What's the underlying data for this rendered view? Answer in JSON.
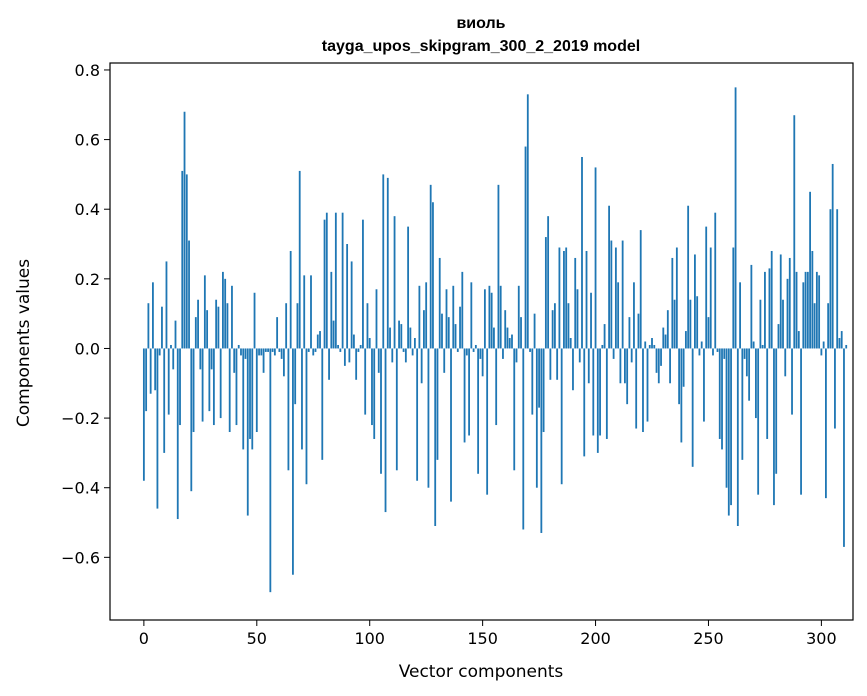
{
  "chart_data": {
    "type": "bar",
    "title": "виоль",
    "subtitle": "tayga_upos_skipgram_300_2_2019 model",
    "xlabel": "Vector components",
    "ylabel": "Components values",
    "xlim": [
      -15,
      314
    ],
    "ylim": [
      -0.78,
      0.82
    ],
    "xticks": [
      0,
      50,
      100,
      150,
      200,
      250,
      300
    ],
    "yticks": [
      -0.6,
      -0.4,
      -0.2,
      0.0,
      0.2,
      0.4,
      0.6,
      0.8
    ],
    "xtick_labels": [
      "0",
      "50",
      "100",
      "150",
      "200",
      "250",
      "300"
    ],
    "ytick_labels": [
      "−0.6",
      "−0.4",
      "−0.2",
      "0.0",
      "0.2",
      "0.4",
      "0.6",
      "0.8"
    ],
    "grid": false,
    "bar_color": "#1f77b4",
    "x_start": 0,
    "values": [
      -0.38,
      -0.18,
      0.13,
      -0.13,
      0.19,
      -0.12,
      -0.46,
      -0.02,
      0.12,
      -0.3,
      0.25,
      -0.19,
      0.01,
      -0.06,
      0.08,
      -0.49,
      -0.22,
      0.51,
      0.68,
      0.5,
      0.31,
      -0.41,
      -0.24,
      0.09,
      0.14,
      -0.06,
      -0.21,
      0.21,
      0.11,
      -0.18,
      -0.06,
      -0.22,
      0.14,
      0.12,
      -0.2,
      0.22,
      0.2,
      0.13,
      -0.24,
      0.18,
      -0.07,
      -0.22,
      0.01,
      -0.02,
      -0.29,
      -0.03,
      -0.48,
      -0.26,
      -0.29,
      0.16,
      -0.24,
      -0.02,
      -0.02,
      -0.07,
      -0.01,
      -0.01,
      -0.7,
      -0.01,
      -0.02,
      0.09,
      -0.01,
      -0.03,
      -0.08,
      0.13,
      -0.35,
      0.28,
      -0.65,
      -0.16,
      0.13,
      0.51,
      -0.29,
      0.21,
      -0.39,
      -0.01,
      0.21,
      -0.02,
      -0.01,
      0.04,
      0.05,
      -0.32,
      0.37,
      0.39,
      -0.09,
      0.22,
      0.08,
      0.39,
      0.01,
      -0.01,
      0.39,
      -0.05,
      0.3,
      -0.04,
      0.25,
      0.04,
      -0.09,
      -0.01,
      0.01,
      0.37,
      -0.19,
      0.13,
      0.03,
      -0.22,
      -0.26,
      0.17,
      -0.07,
      -0.36,
      0.5,
      -0.47,
      0.49,
      0.06,
      -0.04,
      0.38,
      -0.35,
      0.08,
      0.07,
      -0.01,
      -0.04,
      0.35,
      0.06,
      -0.02,
      0.03,
      -0.38,
      0.18,
      -0.1,
      0.11,
      0.19,
      -0.4,
      0.47,
      0.42,
      -0.51,
      -0.32,
      0.26,
      0.1,
      -0.07,
      0.17,
      0.09,
      -0.44,
      0.18,
      0.07,
      -0.01,
      0.12,
      0.22,
      -0.27,
      -0.02,
      -0.25,
      0.19,
      -0.01,
      0.01,
      -0.36,
      -0.03,
      -0.08,
      0.17,
      -0.42,
      0.18,
      0.16,
      0.06,
      -0.22,
      0.47,
      0.18,
      -0.03,
      0.11,
      0.06,
      0.03,
      0.04,
      -0.35,
      -0.04,
      0.18,
      0.09,
      -0.52,
      0.58,
      0.73,
      -0.01,
      -0.19,
      0.1,
      -0.4,
      -0.17,
      -0.53,
      -0.24,
      0.32,
      0.38,
      -0.09,
      0.11,
      0.13,
      -0.09,
      0.29,
      -0.39,
      0.28,
      0.29,
      0.13,
      0.03,
      -0.12,
      0.26,
      0.17,
      -0.04,
      0.55,
      -0.31,
      0.28,
      -0.1,
      0.16,
      -0.25,
      0.52,
      -0.3,
      -0.25,
      0.01,
      0.07,
      -0.26,
      0.41,
      0.31,
      -0.03,
      0.29,
      0.19,
      -0.1,
      0.31,
      -0.1,
      -0.16,
      0.09,
      -0.04,
      0.19,
      -0.23,
      0.1,
      0.34,
      -0.24,
      0.02,
      -0.21,
      0.01,
      0.03,
      0.01,
      -0.07,
      -0.1,
      -0.05,
      0.06,
      0.04,
      0.11,
      -0.1,
      0.26,
      0.14,
      0.29,
      -0.16,
      -0.27,
      -0.11,
      0.05,
      0.41,
      0.14,
      -0.34,
      0.27,
      0.15,
      -0.02,
      0.02,
      -0.21,
      0.35,
      0.09,
      0.29,
      -0.02,
      0.39,
      -0.01,
      -0.26,
      -0.29,
      -0.03,
      -0.4,
      -0.48,
      -0.45,
      0.29,
      0.75,
      -0.51,
      0.19,
      -0.32,
      -0.03,
      -0.08,
      -0.15,
      0.24,
      0.02,
      -0.2,
      -0.42,
      0.14,
      0.01,
      0.22,
      -0.26,
      0.23,
      0.28,
      -0.45,
      -0.36,
      0.07,
      0.27,
      0.14,
      -0.08,
      0.2,
      0.26,
      -0.19,
      0.67,
      0.22,
      0.05,
      -0.42,
      0.19,
      0.22,
      0.22,
      0.45,
      0.28,
      0.13,
      0.22,
      0.21,
      -0.02,
      0.02,
      -0.43,
      0.13,
      0.4,
      0.53,
      -0.23,
      0.4,
      0.03,
      0.05,
      -0.57,
      0.01
    ]
  }
}
